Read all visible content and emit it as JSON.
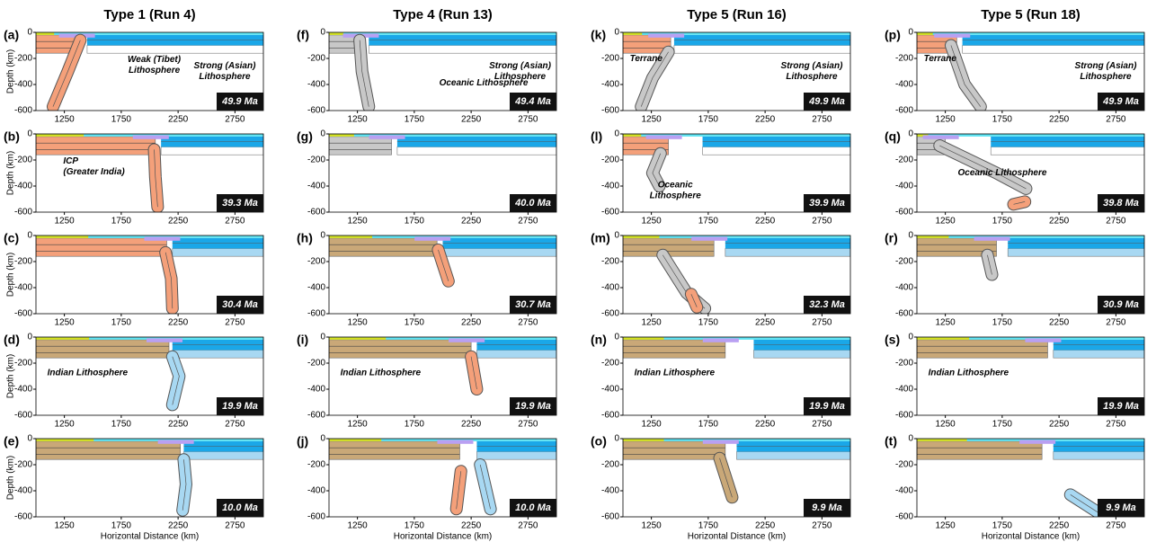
{
  "axes": {
    "xlabel": "Horizontal Distance (km)",
    "ylabel": "Depth (km)",
    "xlim": [
      1000,
      3000
    ],
    "ylim": [
      -600,
      0
    ],
    "xticks": [
      1250,
      1750,
      2250,
      2750
    ],
    "yticks": [
      0,
      -200,
      -400,
      -600
    ]
  },
  "columns": [
    {
      "title": "Type 1 (Run 4)",
      "panels": [
        {
          "label": "(a)",
          "age": "49.9 Ma",
          "annotations": [
            [
              "Weak (Tibet)",
              "Lithosphere"
            ],
            [
              "Strong (Asian)",
              "Lithosphere"
            ]
          ]
        },
        {
          "label": "(b)",
          "age": "39.3 Ma",
          "annotations": [
            [
              "ICP",
              "(Greater India)"
            ]
          ]
        },
        {
          "label": "(c)",
          "age": "30.4 Ma",
          "annotations": []
        },
        {
          "label": "(d)",
          "age": "19.9 Ma",
          "annotations": [
            [
              "Indian Lithosphere"
            ]
          ]
        },
        {
          "label": "(e)",
          "age": "10.0 Ma",
          "annotations": []
        }
      ]
    },
    {
      "title": "Type 4 (Run 13)",
      "panels": [
        {
          "label": "(f)",
          "age": "49.4 Ma",
          "annotations": [
            [
              "Oceanic Lithosphere"
            ],
            [
              "Strong (Asian)",
              "Lithosphere"
            ]
          ]
        },
        {
          "label": "(g)",
          "age": "40.0 Ma",
          "annotations": []
        },
        {
          "label": "(h)",
          "age": "30.7 Ma",
          "annotations": []
        },
        {
          "label": "(i)",
          "age": "19.9 Ma",
          "annotations": [
            [
              "Indian Lithosphere"
            ]
          ]
        },
        {
          "label": "(j)",
          "age": "10.0 Ma",
          "annotations": []
        }
      ]
    },
    {
      "title": "Type 5 (Run 16)",
      "panels": [
        {
          "label": "(k)",
          "age": "49.9 Ma",
          "annotations": [
            [
              "Terrane"
            ],
            [
              "Strong (Asian)",
              "Lithosphere"
            ]
          ]
        },
        {
          "label": "(l)",
          "age": "39.9 Ma",
          "annotations": [
            [
              "Oceanic",
              "Lithosphere"
            ]
          ]
        },
        {
          "label": "(m)",
          "age": "32.3 Ma",
          "annotations": []
        },
        {
          "label": "(n)",
          "age": "19.9 Ma",
          "annotations": [
            [
              "Indian Lithosphere"
            ]
          ]
        },
        {
          "label": "(o)",
          "age": "9.9 Ma",
          "annotations": []
        }
      ]
    },
    {
      "title": "Type 5 (Run 18)",
      "panels": [
        {
          "label": "(p)",
          "age": "49.9 Ma",
          "annotations": [
            [
              "Terrane"
            ],
            [
              "Strong (Asian)",
              "Lithosphere"
            ]
          ]
        },
        {
          "label": "(q)",
          "age": "39.8 Ma",
          "annotations": [
            [
              "Oceanic Lithosphere"
            ]
          ]
        },
        {
          "label": "(r)",
          "age": "30.9 Ma",
          "annotations": []
        },
        {
          "label": "(s)",
          "age": "19.9 Ma",
          "annotations": [
            [
              "Indian Lithosphere"
            ]
          ]
        },
        {
          "label": "(t)",
          "age": "9.9 Ma",
          "annotations": []
        }
      ]
    }
  ]
}
